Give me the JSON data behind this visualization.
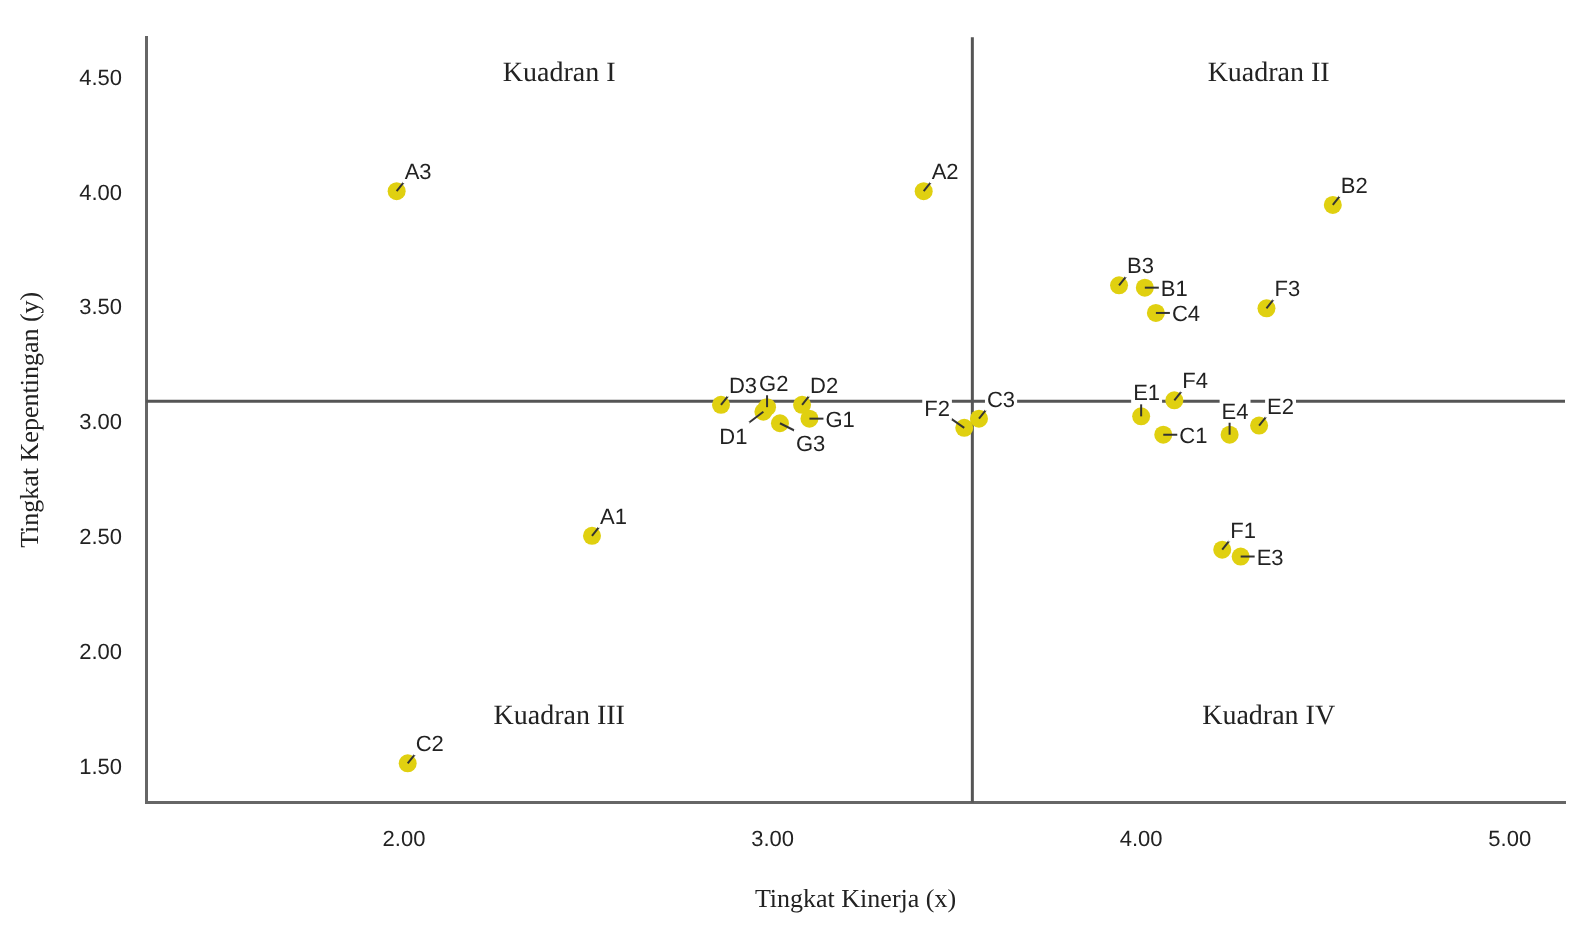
{
  "chart_data": {
    "type": "scatter",
    "xlabel": "Tingkat Kinerja (x)",
    "ylabel": "Tingkat Kepentingan (y)",
    "x": [
      1.98,
      3.41,
      2.51,
      2.01,
      4.52,
      3.94,
      4.01,
      4.04,
      4.34,
      4.09,
      4.0,
      4.06,
      4.24,
      4.32,
      4.22,
      4.27,
      2.86,
      2.975,
      2.985,
      3.08,
      3.1,
      3.02,
      3.52,
      3.56
    ],
    "series": [
      {
        "color": "#e0d010",
        "values": [
          4.01,
          4.01,
          2.51,
          1.52,
          3.95,
          3.6,
          3.59,
          3.48,
          3.5,
          3.1,
          3.03,
          2.95,
          2.95,
          2.99,
          2.45,
          2.42,
          3.08,
          3.05,
          3.07,
          3.08,
          3.02,
          3.0,
          2.98,
          3.02
        ],
        "value_labels": [
          "A3",
          "A2",
          "A1",
          "C2",
          "B2",
          "B3",
          "B1",
          "C4",
          "F3",
          "F4",
          "E1",
          "C1",
          "E4",
          "E2",
          "F1",
          "E3",
          "D3",
          "D1",
          "G2",
          "D2",
          "G1",
          "G3",
          "F2",
          "C3"
        ]
      }
    ],
    "xlim": [
      1.3,
      5.15
    ],
    "ylim": [
      1.35,
      4.68
    ],
    "xticks": [
      {
        "value": 2,
        "label": "2.00"
      },
      {
        "value": 3,
        "label": "3.00"
      },
      {
        "value": 4,
        "label": "4.00"
      },
      {
        "value": 5,
        "label": "5.00"
      }
    ],
    "yticks": [
      {
        "value": 1.5,
        "label": "1.50"
      },
      {
        "value": 2,
        "label": "2.00"
      },
      {
        "value": 2.5,
        "label": "2.50"
      },
      {
        "value": 3,
        "label": "3.00"
      },
      {
        "value": 3.5,
        "label": "3.50"
      },
      {
        "value": 4,
        "label": "4.00"
      },
      {
        "value": 4.5,
        "label": "4.50"
      }
    ],
    "ref_lines": [
      {
        "axis": "x",
        "value": 3.542,
        "color": "#555555"
      },
      {
        "axis": "y",
        "value": 3.096,
        "color": "#555555"
      }
    ],
    "annotations": [
      "Kuadran I",
      "Kuadran II",
      "Kuadran III",
      "Kuadran IV"
    ],
    "grid": false,
    "legend": false,
    "marker": "circle"
  }
}
